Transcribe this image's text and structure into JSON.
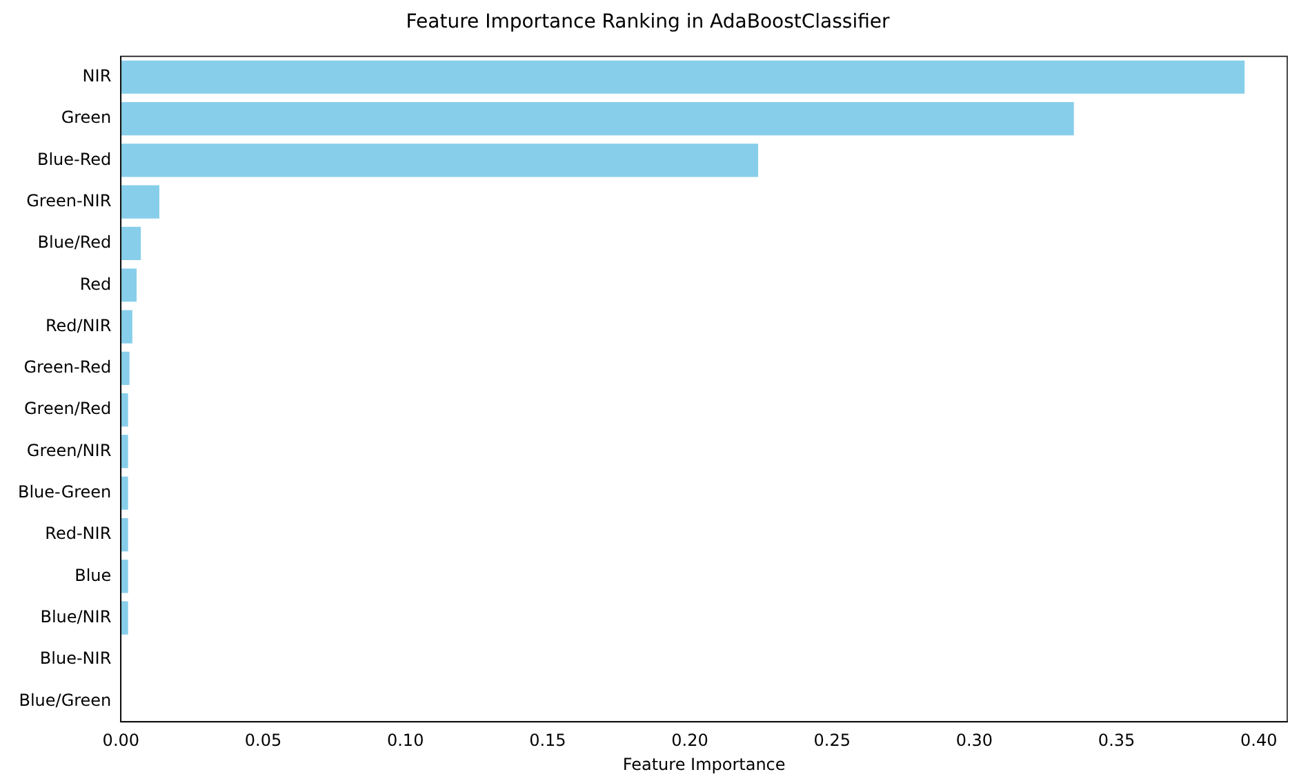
{
  "chart_data": {
    "type": "bar",
    "orientation": "horizontal",
    "title": "Feature Importance Ranking in AdaBoostClassifier",
    "xlabel": "Feature Importance",
    "categories": [
      "NIR",
      "Green",
      "Blue-Red",
      "Green-NIR",
      "Blue/Red",
      "Red",
      "Red/NIR",
      "Green-Red",
      "Green/Red",
      "Green/NIR",
      "Blue-Green",
      "Red-NIR",
      "Blue",
      "Blue/NIR",
      "Blue-NIR",
      "Blue/Green"
    ],
    "values": [
      0.395,
      0.335,
      0.224,
      0.0135,
      0.007,
      0.0055,
      0.004,
      0.003,
      0.0025,
      0.0025,
      0.0025,
      0.0025,
      0.0025,
      0.0025,
      0,
      0
    ],
    "color": "#87ceeb",
    "xlim": [
      0,
      0.41
    ],
    "xticks": [
      {
        "value": 0,
        "label": "0.00"
      },
      {
        "value": 0.05,
        "label": "0.05"
      },
      {
        "value": 0.1,
        "label": "0.10"
      },
      {
        "value": 0.15,
        "label": "0.15"
      },
      {
        "value": 0.2,
        "label": "0.20"
      },
      {
        "value": 0.25,
        "label": "0.25"
      },
      {
        "value": 0.3,
        "label": "0.30"
      },
      {
        "value": 0.35,
        "label": "0.35"
      },
      {
        "value": 0.4,
        "label": "0.40"
      }
    ],
    "grid": false,
    "legend": false
  }
}
